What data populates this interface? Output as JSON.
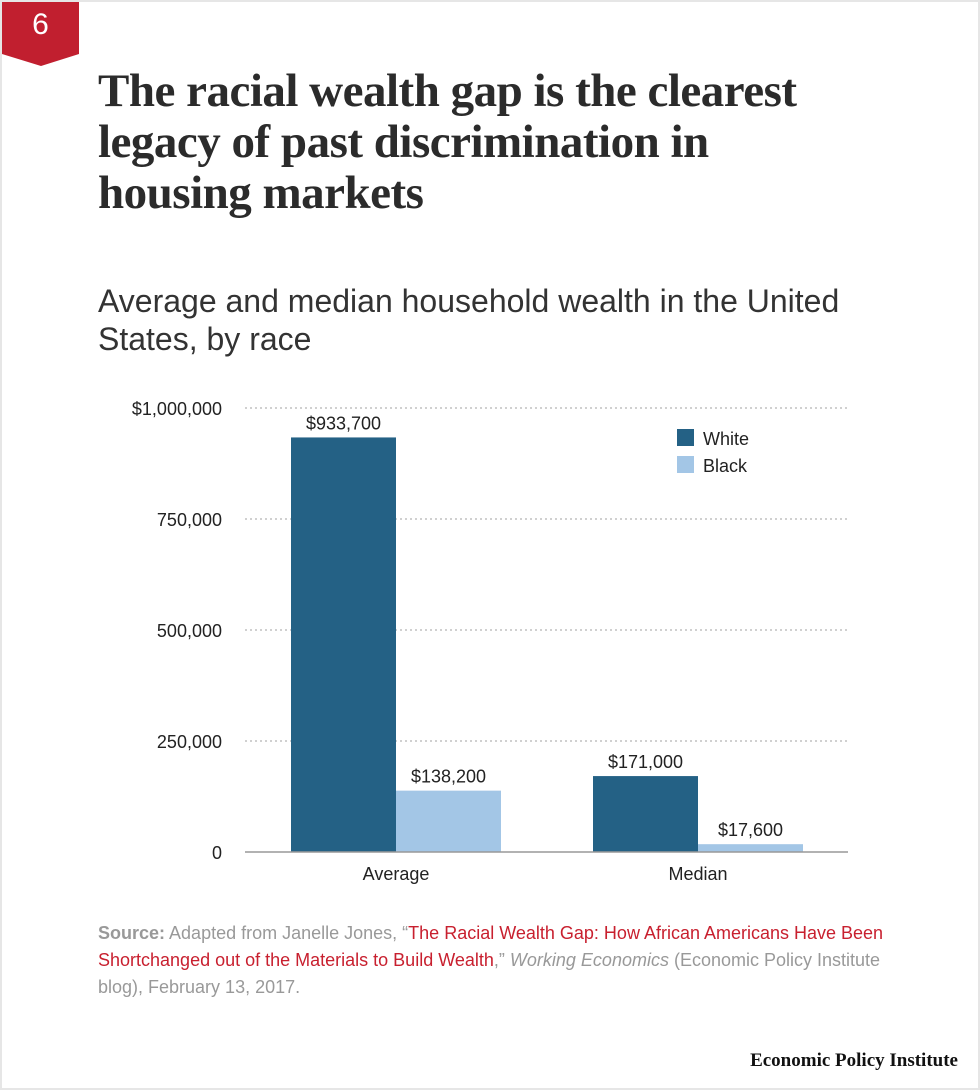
{
  "badge": {
    "number": "6",
    "color": "#c11f2f"
  },
  "title": "The racial wealth gap is the clearest legacy of past discrimination in housing markets",
  "subtitle": "Average and median household wealth in the United States, by race",
  "chart_data": {
    "type": "bar",
    "categories": [
      "Average",
      "Median"
    ],
    "series": [
      {
        "name": "White",
        "values": [
          933700,
          171000
        ],
        "labels": [
          "$933,700",
          "$171,000"
        ],
        "color": "#246185"
      },
      {
        "name": "Black",
        "values": [
          138200,
          17600
        ],
        "labels": [
          "$138,200",
          "$17,600"
        ],
        "color": "#a3c6e6"
      }
    ],
    "ylim": [
      0,
      1000000
    ],
    "yticks": [
      0,
      250000,
      500000,
      750000,
      1000000
    ],
    "ytick_labels": [
      "0",
      "250,000",
      "500,000",
      "750,000",
      "$1,000,000"
    ],
    "grid": true,
    "legend": "top-right"
  },
  "source": {
    "label": "Source:",
    "pre": " Adapted from Janelle Jones, “",
    "link": "The Racial Wealth Gap: How African Americans Have Been Shortchanged out of the Materials to Build Wealth",
    "mid": ",” ",
    "italic": "Working Economics",
    "post": " (Economic Policy Institute blog), February 13, 2017."
  },
  "logo": "Economic Policy Institute"
}
